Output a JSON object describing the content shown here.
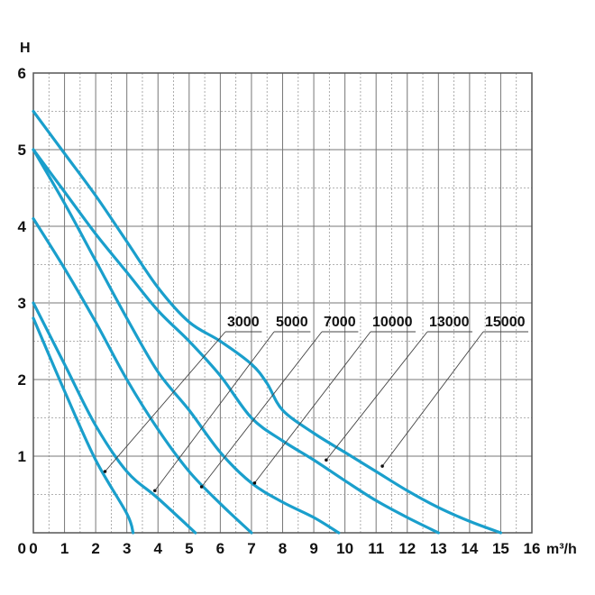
{
  "chart_data": {
    "type": "line",
    "title": "",
    "xlabel": "m³/h",
    "ylabel": "H",
    "xlim": [
      0,
      16
    ],
    "ylim": [
      0,
      6
    ],
    "x_ticks": [
      "0",
      "1",
      "2",
      "3",
      "4",
      "5",
      "6",
      "7",
      "8",
      "9",
      "10",
      "11",
      "12",
      "13",
      "14",
      "15",
      "16"
    ],
    "y_ticks": [
      "1",
      "2",
      "3",
      "4",
      "5",
      "6"
    ],
    "grid": true,
    "line_color": "#1a9fcc",
    "series": [
      {
        "name": "3000",
        "points": [
          [
            0,
            2.8
          ],
          [
            1,
            1.85
          ],
          [
            2,
            0.95
          ],
          [
            3,
            0.25
          ],
          [
            3.2,
            0
          ]
        ]
      },
      {
        "name": "5000",
        "points": [
          [
            0,
            3.0
          ],
          [
            1,
            2.2
          ],
          [
            2,
            1.4
          ],
          [
            3,
            0.8
          ],
          [
            4,
            0.45
          ],
          [
            5.2,
            0
          ]
        ]
      },
      {
        "name": "7000",
        "points": [
          [
            0,
            4.1
          ],
          [
            1,
            3.45
          ],
          [
            2,
            2.75
          ],
          [
            3,
            2.0
          ],
          [
            4,
            1.35
          ],
          [
            5,
            0.8
          ],
          [
            6,
            0.38
          ],
          [
            7,
            0
          ]
        ]
      },
      {
        "name": "10000",
        "points": [
          [
            0,
            5.0
          ],
          [
            1,
            4.3
          ],
          [
            2,
            3.55
          ],
          [
            3,
            2.8
          ],
          [
            4,
            2.1
          ],
          [
            5,
            1.6
          ],
          [
            6,
            1.05
          ],
          [
            7,
            0.65
          ],
          [
            8,
            0.4
          ],
          [
            9,
            0.2
          ],
          [
            9.8,
            0
          ]
        ]
      },
      {
        "name": "13000",
        "points": [
          [
            0,
            5.0
          ],
          [
            1,
            4.45
          ],
          [
            2,
            3.9
          ],
          [
            3,
            3.4
          ],
          [
            4,
            2.9
          ],
          [
            5,
            2.5
          ],
          [
            6,
            2.05
          ],
          [
            7,
            1.5
          ],
          [
            8,
            1.2
          ],
          [
            9,
            0.95
          ],
          [
            10,
            0.68
          ],
          [
            11,
            0.42
          ],
          [
            12,
            0.2
          ],
          [
            13,
            0
          ]
        ]
      },
      {
        "name": "15000",
        "points": [
          [
            0,
            5.5
          ],
          [
            1,
            4.95
          ],
          [
            2,
            4.4
          ],
          [
            3,
            3.8
          ],
          [
            4,
            3.2
          ],
          [
            5,
            2.75
          ],
          [
            6,
            2.5
          ],
          [
            7,
            2.2
          ],
          [
            7.5,
            1.95
          ],
          [
            8,
            1.6
          ],
          [
            9,
            1.3
          ],
          [
            10,
            1.05
          ],
          [
            11,
            0.8
          ],
          [
            12,
            0.55
          ],
          [
            13,
            0.33
          ],
          [
            14,
            0.15
          ],
          [
            15,
            0
          ]
        ]
      }
    ],
    "annotations": [
      {
        "text": "3000",
        "target": [
          2.3,
          0.8
        ]
      },
      {
        "text": "5000",
        "target": [
          3.9,
          0.55
        ]
      },
      {
        "text": "7000",
        "target": [
          5.4,
          0.6
        ]
      },
      {
        "text": "10000",
        "target": [
          7.1,
          0.65
        ]
      },
      {
        "text": "13000",
        "target": [
          9.4,
          0.95
        ]
      },
      {
        "text": "15000",
        "target": [
          11.2,
          0.87
        ]
      }
    ]
  }
}
